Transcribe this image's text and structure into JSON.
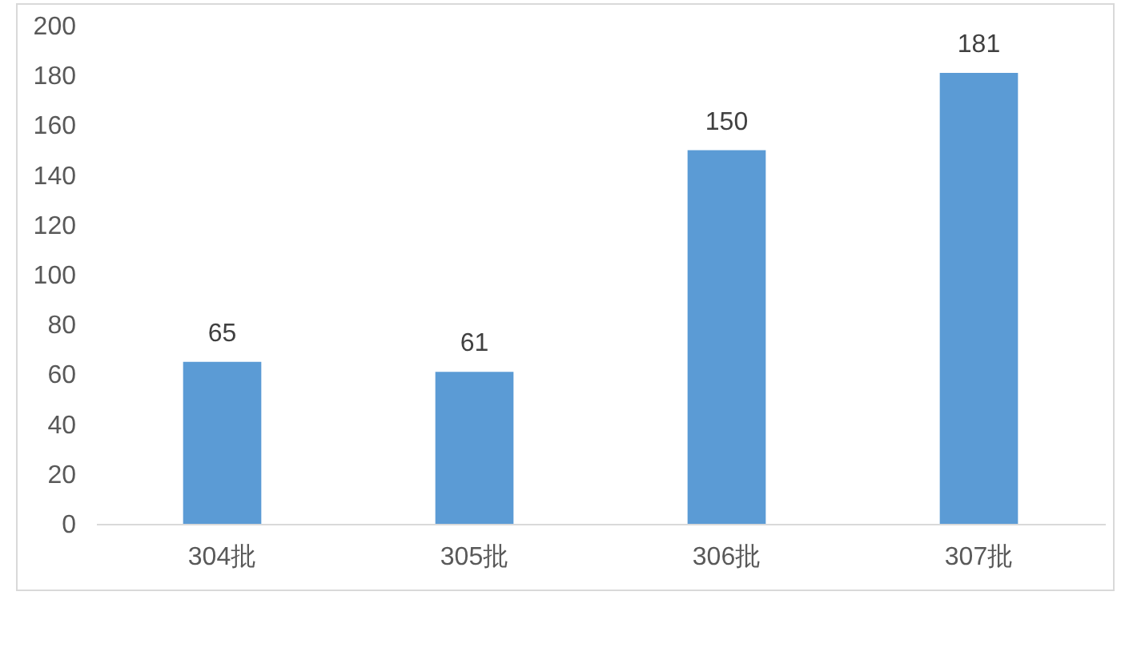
{
  "chart_data": {
    "type": "bar",
    "categories": [
      "304批",
      "305批",
      "306批",
      "307批"
    ],
    "values": [
      65,
      61,
      150,
      181
    ],
    "color": "#5b9bd5",
    "ylim": [
      0,
      200
    ],
    "yticks": [
      0,
      20,
      40,
      60,
      80,
      100,
      120,
      140,
      160,
      180,
      200
    ],
    "data_labels": true
  }
}
